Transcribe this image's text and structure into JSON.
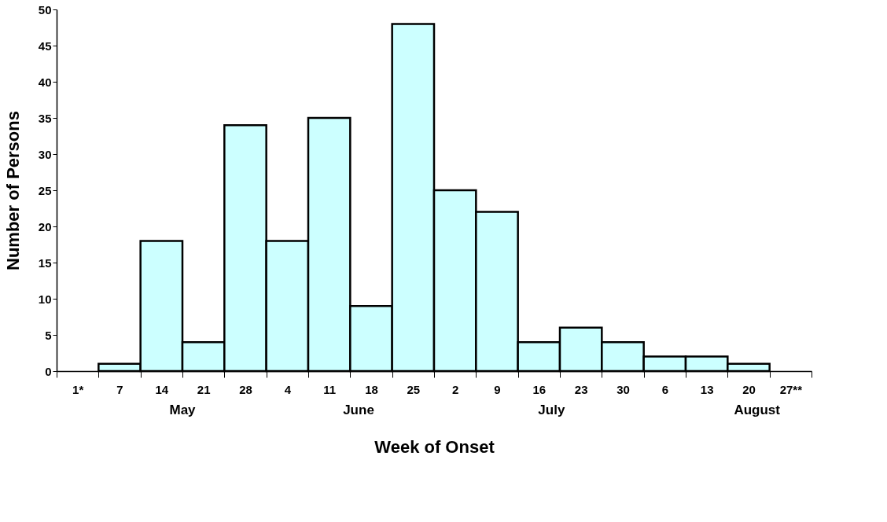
{
  "chart_data": {
    "type": "bar",
    "xlabel": "Week of Onset",
    "ylabel": "Number of Persons",
    "categories": [
      "1*",
      "7",
      "14",
      "21",
      "28",
      "4",
      "11",
      "18",
      "25",
      "2",
      "9",
      "16",
      "23",
      "30",
      "6",
      "13",
      "20",
      "27**"
    ],
    "values": [
      null,
      1,
      18,
      4,
      34,
      18,
      35,
      9,
      48,
      25,
      22,
      4,
      6,
      4,
      2,
      2,
      1,
      null
    ],
    "color": "#ccffff",
    "ylim": [
      0,
      50
    ],
    "yticks": [
      0,
      5,
      10,
      15,
      20,
      25,
      30,
      35,
      40,
      45,
      50
    ],
    "annotations": [
      "May",
      "June",
      "July",
      "August"
    ],
    "grid": false
  }
}
